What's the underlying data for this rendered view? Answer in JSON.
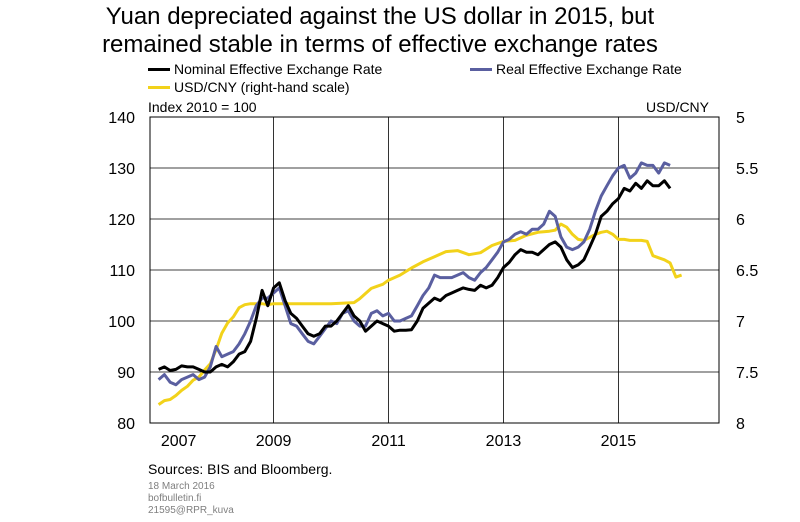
{
  "title_line1": "Yuan depreciated against the US dollar in 2015, but",
  "title_line2": "remained stable in terms of effective exchange rates",
  "legend": {
    "neer": "Nominal Effective Exchange Rate",
    "reer": "Real Effective Exchange Rate",
    "usdcny": "USD/CNY (right-hand scale)"
  },
  "left_axis_label": "Index 2010 = 100",
  "right_axis_label": "USD/CNY",
  "source": "Sources: BIS and Bloomberg.",
  "date": "18 March 2016",
  "site": "bofbulletin.fi",
  "code": "21595@RPR_kuva",
  "colors": {
    "neer": "#000000",
    "reer": "#5a5fa0",
    "usdcny": "#f2d21a",
    "grid": "#000000"
  },
  "chart_data": {
    "type": "line",
    "x_tick_labels": [
      "2007",
      "2009",
      "2011",
      "2013",
      "2015"
    ],
    "x_ticks": [
      2007,
      2009,
      2011,
      2013,
      2015
    ],
    "xlim": [
      2006.85,
      2016.75
    ],
    "left_axis": {
      "ylim": [
        80,
        140
      ],
      "ticks": [
        80,
        90,
        100,
        110,
        120,
        130,
        140
      ]
    },
    "right_axis": {
      "ylim": [
        8,
        5
      ],
      "ticks": [
        8,
        7.5,
        7,
        6.5,
        6,
        5.5,
        5
      ],
      "inverted": true
    },
    "grid": true,
    "series": [
      {
        "name": "Nominal Effective Exchange Rate",
        "axis": "left",
        "x": [
          2007.0,
          2007.1,
          2007.2,
          2007.3,
          2007.4,
          2007.5,
          2007.6,
          2007.7,
          2007.8,
          2007.9,
          2008.0,
          2008.1,
          2008.2,
          2008.3,
          2008.4,
          2008.5,
          2008.6,
          2008.7,
          2008.8,
          2008.9,
          2009.0,
          2009.1,
          2009.2,
          2009.3,
          2009.4,
          2009.5,
          2009.6,
          2009.7,
          2009.8,
          2009.9,
          2010.0,
          2010.1,
          2010.2,
          2010.3,
          2010.4,
          2010.5,
          2010.6,
          2010.7,
          2010.8,
          2010.9,
          2011.0,
          2011.1,
          2011.2,
          2011.3,
          2011.4,
          2011.5,
          2011.6,
          2011.7,
          2011.8,
          2011.9,
          2012.0,
          2012.1,
          2012.2,
          2012.3,
          2012.4,
          2012.5,
          2012.6,
          2012.7,
          2012.8,
          2012.9,
          2013.0,
          2013.1,
          2013.2,
          2013.3,
          2013.4,
          2013.5,
          2013.6,
          2013.7,
          2013.8,
          2013.9,
          2014.0,
          2014.1,
          2014.2,
          2014.3,
          2014.4,
          2014.5,
          2014.6,
          2014.7,
          2014.8,
          2014.9,
          2015.0,
          2015.1,
          2015.2,
          2015.3,
          2015.4,
          2015.5,
          2015.6,
          2015.7,
          2015.8,
          2015.9
        ],
        "y": [
          90.5,
          91,
          90.3,
          90.5,
          91.2,
          91.0,
          91.0,
          90.5,
          90.0,
          90.0,
          91.0,
          91.5,
          91.0,
          92.0,
          93.5,
          94.0,
          96.0,
          100.5,
          106.0,
          103.0,
          106.5,
          107.5,
          104.0,
          101.5,
          100.5,
          99.0,
          97.5,
          97.0,
          97.5,
          99.0,
          99.0,
          100.0,
          101.5,
          103.0,
          101.0,
          100.0,
          98.0,
          99.0,
          100.0,
          99.5,
          99.0,
          98.0,
          98.2,
          98.2,
          98.3,
          100.0,
          102.5,
          103.5,
          104.5,
          104.0,
          105.0,
          105.5,
          106.0,
          106.5,
          106.2,
          106.0,
          107.0,
          106.5,
          107.0,
          108.5,
          110.5,
          111.5,
          113.0,
          114.0,
          113.5,
          113.5,
          113.0,
          114.0,
          115.0,
          115.5,
          114.5,
          112.0,
          110.5,
          111.0,
          112.0,
          114.5,
          117.0,
          120.5,
          121.5,
          123.0,
          124.0,
          126.0,
          125.5,
          127.0,
          126.0,
          127.5,
          126.5,
          126.5,
          127.5,
          126.0
        ]
      },
      {
        "name": "Real Effective Exchange Rate",
        "axis": "left",
        "x": [
          2007.0,
          2007.1,
          2007.2,
          2007.3,
          2007.4,
          2007.5,
          2007.6,
          2007.7,
          2007.8,
          2007.9,
          2008.0,
          2008.1,
          2008.2,
          2008.3,
          2008.4,
          2008.5,
          2008.6,
          2008.7,
          2008.8,
          2008.9,
          2009.0,
          2009.1,
          2009.2,
          2009.3,
          2009.4,
          2009.5,
          2009.6,
          2009.7,
          2009.8,
          2009.9,
          2010.0,
          2010.1,
          2010.2,
          2010.3,
          2010.4,
          2010.5,
          2010.6,
          2010.7,
          2010.8,
          2010.9,
          2011.0,
          2011.1,
          2011.2,
          2011.3,
          2011.4,
          2011.5,
          2011.6,
          2011.7,
          2011.8,
          2011.9,
          2012.0,
          2012.1,
          2012.2,
          2012.3,
          2012.4,
          2012.5,
          2012.6,
          2012.7,
          2012.8,
          2012.9,
          2013.0,
          2013.1,
          2013.2,
          2013.3,
          2013.4,
          2013.5,
          2013.6,
          2013.7,
          2013.8,
          2013.9,
          2014.0,
          2014.1,
          2014.2,
          2014.3,
          2014.4,
          2014.5,
          2014.6,
          2014.7,
          2014.8,
          2014.9,
          2015.0,
          2015.1,
          2015.2,
          2015.3,
          2015.4,
          2015.5,
          2015.6,
          2015.7,
          2015.8,
          2015.9
        ],
        "y": [
          88.5,
          89.5,
          88.0,
          87.5,
          88.5,
          89.0,
          89.5,
          88.5,
          89.0,
          91.0,
          95.0,
          93.0,
          93.5,
          94.0,
          95.5,
          97.5,
          100.0,
          103.0,
          104.5,
          104.5,
          105.5,
          106.5,
          103.0,
          99.5,
          99.0,
          97.5,
          96.0,
          95.5,
          97.0,
          98.5,
          100.0,
          99.5,
          101.5,
          102.0,
          100.0,
          99.0,
          99.0,
          101.5,
          102.0,
          101.0,
          101.5,
          100.0,
          100.0,
          100.5,
          101.0,
          103.0,
          105.0,
          106.5,
          109.0,
          108.5,
          108.5,
          108.5,
          109.0,
          109.5,
          108.5,
          108.0,
          109.5,
          110.5,
          112.0,
          113.5,
          115.5,
          116.0,
          117.0,
          117.5,
          117.0,
          118.0,
          118.0,
          119.0,
          121.5,
          120.5,
          116.5,
          114.5,
          114.0,
          114.5,
          115.5,
          118.0,
          121.5,
          124.5,
          126.5,
          128.5,
          130.0,
          130.5,
          128.0,
          129.0,
          131.0,
          130.5,
          130.5,
          129.0,
          131.0,
          130.5
        ]
      },
      {
        "name": "USD/CNY (right-hand scale)",
        "axis": "right",
        "x": [
          2007.0,
          2007.1,
          2007.2,
          2007.3,
          2007.4,
          2007.5,
          2007.6,
          2007.7,
          2007.8,
          2007.9,
          2008.0,
          2008.1,
          2008.2,
          2008.3,
          2008.4,
          2008.5,
          2008.6,
          2008.7,
          2008.8,
          2008.9,
          2009.0,
          2009.5,
          2010.0,
          2010.4,
          2010.5,
          2010.6,
          2010.7,
          2010.8,
          2010.9,
          2011.0,
          2011.2,
          2011.4,
          2011.6,
          2011.8,
          2012.0,
          2012.2,
          2012.4,
          2012.6,
          2012.8,
          2013.0,
          2013.2,
          2013.4,
          2013.6,
          2013.8,
          2013.9,
          2014.0,
          2014.1,
          2014.2,
          2014.3,
          2014.4,
          2014.5,
          2014.6,
          2014.7,
          2014.8,
          2014.9,
          2015.0,
          2015.1,
          2015.2,
          2015.4,
          2015.5,
          2015.6,
          2015.7,
          2015.8,
          2015.9,
          2016.0,
          2016.1
        ],
        "y": [
          7.82,
          7.78,
          7.77,
          7.73,
          7.68,
          7.64,
          7.58,
          7.55,
          7.48,
          7.42,
          7.28,
          7.12,
          7.02,
          6.96,
          6.87,
          6.84,
          6.83,
          6.83,
          6.83,
          6.84,
          6.83,
          6.83,
          6.83,
          6.82,
          6.78,
          6.73,
          6.68,
          6.66,
          6.64,
          6.6,
          6.55,
          6.48,
          6.42,
          6.37,
          6.32,
          6.31,
          6.35,
          6.33,
          6.26,
          6.22,
          6.21,
          6.16,
          6.13,
          6.12,
          6.11,
          6.05,
          6.08,
          6.15,
          6.2,
          6.21,
          6.18,
          6.15,
          6.13,
          6.12,
          6.15,
          6.2,
          6.2,
          6.21,
          6.21,
          6.22,
          6.36,
          6.38,
          6.4,
          6.43,
          6.57,
          6.55
        ]
      }
    ]
  }
}
